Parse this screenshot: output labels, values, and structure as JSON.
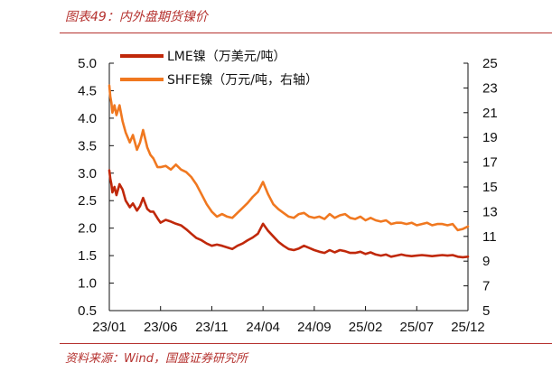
{
  "title": "图表49：内外盘期货镍价",
  "source": "资料来源：Wind，国盛证券研究所",
  "chart_data": {
    "type": "line",
    "x_ticks": [
      "23/01",
      "23/06",
      "23/11",
      "24/04",
      "24/09",
      "25/02",
      "25/07",
      "25/12"
    ],
    "y_left": {
      "min": 0.5,
      "max": 5.0,
      "ticks": [
        "0.5",
        "1.0",
        "1.5",
        "2.0",
        "2.5",
        "3.0",
        "3.5",
        "4.0",
        "4.5",
        "5.0"
      ]
    },
    "y_right": {
      "min": 5,
      "max": 25,
      "ticks": [
        "5",
        "7",
        "9",
        "11",
        "13",
        "15",
        "17",
        "19",
        "21",
        "23",
        "25"
      ]
    },
    "legend_position": "top-left",
    "grid": false,
    "series": [
      {
        "name": "LME镍（万美元/吨）",
        "axis": "left",
        "color": "#c0280a",
        "x": [
          0,
          0.1,
          0.2,
          0.3,
          0.5,
          0.7,
          1.0,
          1.3,
          1.6,
          2.0,
          2.3,
          2.7,
          3.0,
          3.3,
          3.7,
          4.0,
          4.3,
          4.7,
          5.0,
          5.5,
          6.0,
          6.5,
          7.0,
          7.5,
          8.0,
          8.5,
          9.0,
          9.5,
          10.0,
          10.5,
          11.0,
          11.5,
          12.0,
          12.5,
          13.0,
          13.5,
          14.0,
          14.5,
          15.0,
          15.5,
          16.0,
          16.5,
          17.0,
          17.5,
          18.0,
          18.5,
          19.0,
          19.5,
          20.0,
          20.5,
          21.0,
          21.5,
          22.0,
          22.5,
          23.0,
          23.5,
          24.0,
          24.5,
          25.0,
          25.5,
          26.0,
          26.5,
          27.0,
          27.5,
          28.0,
          28.5,
          29.0,
          29.5,
          30.0,
          30.5,
          31.0,
          31.5,
          32.0,
          32.5,
          33.0,
          33.5,
          34.0,
          34.5,
          35.0
        ],
        "values": [
          3.05,
          2.9,
          2.8,
          2.65,
          2.75,
          2.6,
          2.8,
          2.7,
          2.5,
          2.38,
          2.45,
          2.32,
          2.4,
          2.55,
          2.35,
          2.3,
          2.3,
          2.18,
          2.1,
          2.15,
          2.12,
          2.08,
          2.05,
          1.98,
          1.9,
          1.82,
          1.78,
          1.72,
          1.68,
          1.7,
          1.68,
          1.65,
          1.62,
          1.68,
          1.72,
          1.78,
          1.83,
          1.9,
          2.08,
          1.95,
          1.85,
          1.75,
          1.68,
          1.62,
          1.6,
          1.63,
          1.68,
          1.64,
          1.6,
          1.57,
          1.55,
          1.6,
          1.56,
          1.6,
          1.58,
          1.55,
          1.55,
          1.57,
          1.53,
          1.56,
          1.52,
          1.5,
          1.52,
          1.48,
          1.5,
          1.52,
          1.5,
          1.49,
          1.5,
          1.51,
          1.5,
          1.49,
          1.5,
          1.51,
          1.5,
          1.51,
          1.48,
          1.47,
          1.48
        ]
      },
      {
        "name": "SHFE镍（万元/吨，右轴）",
        "axis": "right",
        "color": "#f07820",
        "x": [
          0,
          0.1,
          0.2,
          0.3,
          0.5,
          0.7,
          1.0,
          1.3,
          1.6,
          2.0,
          2.3,
          2.7,
          3.0,
          3.3,
          3.7,
          4.0,
          4.3,
          4.7,
          5.0,
          5.5,
          6.0,
          6.5,
          7.0,
          7.5,
          8.0,
          8.5,
          9.0,
          9.5,
          10.0,
          10.5,
          11.0,
          11.5,
          12.0,
          12.5,
          13.0,
          13.5,
          14.0,
          14.5,
          15.0,
          15.5,
          16.0,
          16.5,
          17.0,
          17.5,
          18.0,
          18.5,
          19.0,
          19.5,
          20.0,
          20.5,
          21.0,
          21.5,
          22.0,
          22.5,
          23.0,
          23.5,
          24.0,
          24.5,
          25.0,
          25.5,
          26.0,
          26.5,
          27.0,
          27.5,
          28.0,
          28.5,
          29.0,
          29.5,
          30.0,
          30.5,
          31.0,
          31.5,
          32.0,
          32.5,
          33.0,
          33.5,
          34.0,
          34.5,
          35.0
        ],
        "values": [
          23.2,
          22.3,
          21.8,
          21.0,
          21.6,
          20.8,
          21.6,
          20.3,
          19.4,
          18.6,
          19.2,
          18.0,
          18.6,
          19.6,
          18.2,
          17.6,
          17.3,
          16.6,
          16.6,
          16.7,
          16.4,
          16.8,
          16.4,
          16.2,
          15.8,
          15.2,
          14.4,
          13.6,
          13.0,
          12.6,
          12.8,
          12.6,
          12.5,
          12.9,
          13.3,
          13.7,
          14.2,
          14.6,
          15.4,
          14.4,
          13.6,
          13.2,
          12.9,
          12.6,
          12.5,
          12.8,
          12.9,
          12.6,
          12.5,
          12.6,
          12.4,
          12.8,
          12.5,
          12.7,
          12.8,
          12.5,
          12.4,
          12.6,
          12.3,
          12.5,
          12.3,
          12.2,
          12.3,
          12.0,
          12.1,
          12.1,
          12.0,
          12.1,
          11.9,
          12.0,
          12.1,
          11.9,
          12.0,
          12.0,
          11.9,
          12.0,
          11.5,
          11.6,
          11.8
        ]
      }
    ]
  }
}
